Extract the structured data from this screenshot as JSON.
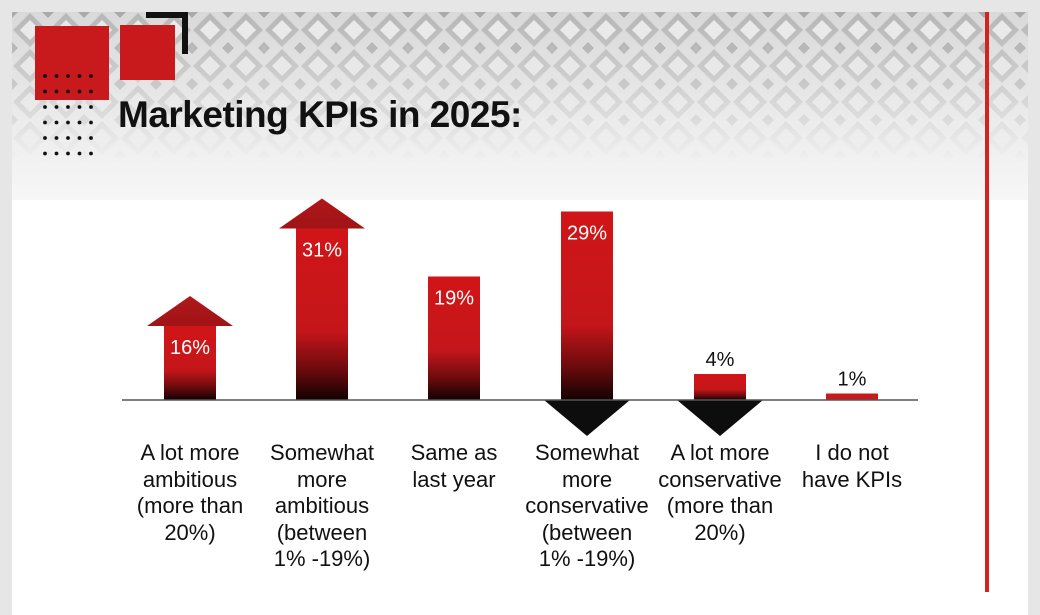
{
  "title": "Marketing KPIs in 2025:",
  "colors": {
    "accent": "#c8191c",
    "dark": "#111111",
    "vertical_line": "#d3231f"
  },
  "chart_data": {
    "type": "bar",
    "title": "Marketing KPIs in 2025:",
    "xlabel": "",
    "ylabel": "",
    "unit": "%",
    "ylim": [
      0,
      31
    ],
    "categories": [
      "A lot more ambitious (more than 20%)",
      "Somewhat more ambitious (between 1% -19%)",
      "Same as last year",
      "Somewhat more conservative (between 1% -19%)",
      "A lot more conservative (more than 20%)",
      "I do not have KPIs"
    ],
    "category_lines": [
      [
        "A lot more",
        "ambitious",
        "(more than",
        "20%)"
      ],
      [
        "Somewhat",
        "more",
        "ambitious",
        "(between",
        "1% -19%)"
      ],
      [
        "Same as",
        "last year"
      ],
      [
        "Somewhat",
        "more",
        "conservative",
        "(between",
        "1% -19%)"
      ],
      [
        "A lot more",
        "conservative",
        "(more than",
        "20%)"
      ],
      [
        "I do not",
        "have KPIs"
      ]
    ],
    "values": [
      16,
      31,
      19,
      29,
      4,
      1
    ],
    "value_labels": [
      "16%",
      "31%",
      "19%",
      "29%",
      "4%",
      "1%"
    ],
    "marker": [
      "up-arrow",
      "up-arrow",
      "none",
      "down-arrow",
      "down-arrow",
      "none"
    ],
    "grid": false,
    "legend": "none"
  }
}
